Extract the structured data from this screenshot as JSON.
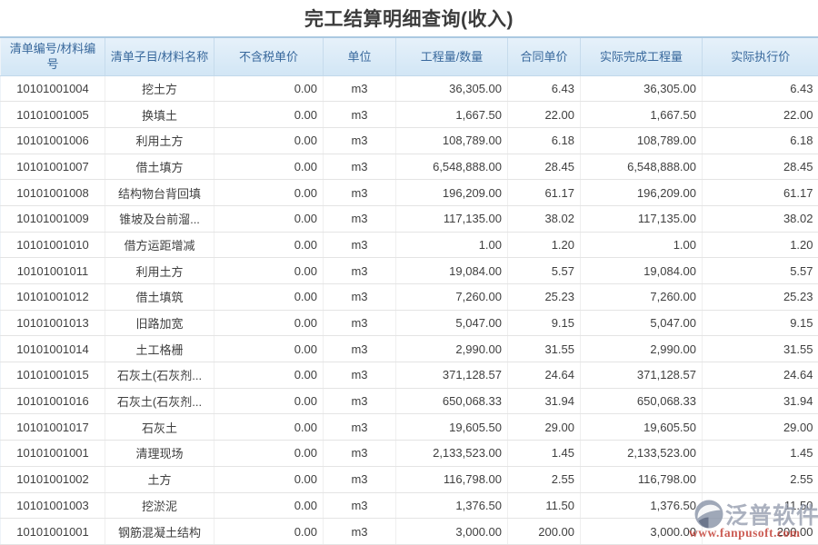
{
  "page": {
    "title": "完工结算明细查询(收入)"
  },
  "table": {
    "columns": [
      {
        "label": "清单编号/材料编号"
      },
      {
        "label": "清单子目/材料名称"
      },
      {
        "label": "不含税单价"
      },
      {
        "label": "单位"
      },
      {
        "label": "工程量/数量"
      },
      {
        "label": "合同单价"
      },
      {
        "label": "实际完成工程量"
      },
      {
        "label": "实际执行价"
      }
    ],
    "rows": [
      [
        "10101001004",
        "挖土方",
        "0.00",
        "m3",
        "36,305.00",
        "6.43",
        "36,305.00",
        "6.43"
      ],
      [
        "10101001005",
        "换填土",
        "0.00",
        "m3",
        "1,667.50",
        "22.00",
        "1,667.50",
        "22.00"
      ],
      [
        "10101001006",
        "利用土方",
        "0.00",
        "m3",
        "108,789.00",
        "6.18",
        "108,789.00",
        "6.18"
      ],
      [
        "10101001007",
        "借土填方",
        "0.00",
        "m3",
        "6,548,888.00",
        "28.45",
        "6,548,888.00",
        "28.45"
      ],
      [
        "10101001008",
        "结构物台背回填",
        "0.00",
        "m3",
        "196,209.00",
        "61.17",
        "196,209.00",
        "61.17"
      ],
      [
        "10101001009",
        "锥坡及台前溜...",
        "0.00",
        "m3",
        "117,135.00",
        "38.02",
        "117,135.00",
        "38.02"
      ],
      [
        "10101001010",
        "借方运距增减",
        "0.00",
        "m3",
        "1.00",
        "1.20",
        "1.00",
        "1.20"
      ],
      [
        "10101001011",
        "利用土方",
        "0.00",
        "m3",
        "19,084.00",
        "5.57",
        "19,084.00",
        "5.57"
      ],
      [
        "10101001012",
        "借土填筑",
        "0.00",
        "m3",
        "7,260.00",
        "25.23",
        "7,260.00",
        "25.23"
      ],
      [
        "10101001013",
        "旧路加宽",
        "0.00",
        "m3",
        "5,047.00",
        "9.15",
        "5,047.00",
        "9.15"
      ],
      [
        "10101001014",
        "土工格栅",
        "0.00",
        "m3",
        "2,990.00",
        "31.55",
        "2,990.00",
        "31.55"
      ],
      [
        "10101001015",
        "石灰土(石灰剂...",
        "0.00",
        "m3",
        "371,128.57",
        "24.64",
        "371,128.57",
        "24.64"
      ],
      [
        "10101001016",
        "石灰土(石灰剂...",
        "0.00",
        "m3",
        "650,068.33",
        "31.94",
        "650,068.33",
        "31.94"
      ],
      [
        "10101001017",
        "石灰土",
        "0.00",
        "m3",
        "19,605.50",
        "29.00",
        "19,605.50",
        "29.00"
      ],
      [
        "10101001001",
        "清理现场",
        "0.00",
        "m3",
        "2,133,523.00",
        "1.45",
        "2,133,523.00",
        "1.45"
      ],
      [
        "10101001002",
        "土方",
        "0.00",
        "m3",
        "116,798.00",
        "2.55",
        "116,798.00",
        "2.55"
      ],
      [
        "10101001003",
        "挖淤泥",
        "0.00",
        "m3",
        "1,376.50",
        "11.50",
        "1,376.50",
        "11.50"
      ],
      [
        "10101001001",
        "钢筋混凝土结构",
        "0.00",
        "m3",
        "3,000.00",
        "200.00",
        "3,000.00",
        "200.00"
      ]
    ]
  },
  "watermark": {
    "brand": "泛普软件",
    "url": "www.fanpusoft.com"
  },
  "colors": {
    "header_bg": "#d9eaf7",
    "header_text": "#38689c",
    "header_border": "#abc9e1",
    "row_border": "#e4e4e4",
    "body_text": "#3f3f3f",
    "watermark_brand": "#99a1b2",
    "watermark_url": "#c23a30"
  }
}
